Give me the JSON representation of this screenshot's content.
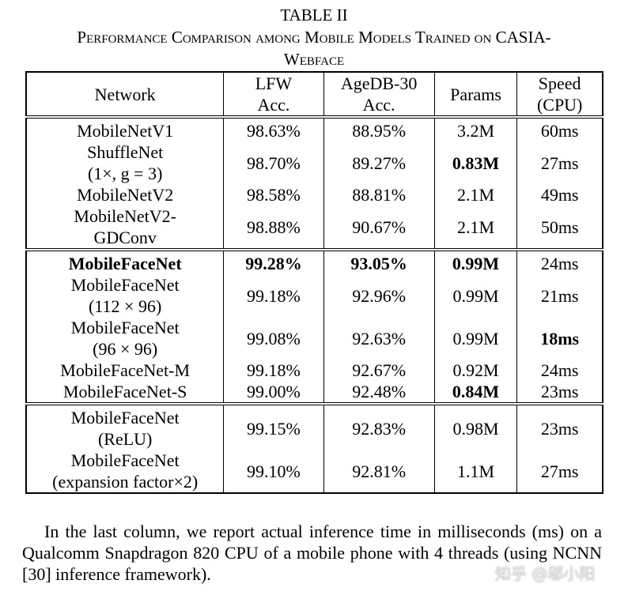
{
  "header": {
    "label": "TABLE II",
    "title": "Performance Comparison among Mobile Models Trained on CASIA-Webface"
  },
  "table": {
    "columns": [
      "Network",
      "LFW\nAcc.",
      "AgeDB-30\nAcc.",
      "Params",
      "Speed\n(CPU)"
    ],
    "groups": [
      [
        [
          "MobileNetV1",
          "98.63%",
          "88.95%",
          "3.2M",
          "60ms"
        ],
        [
          "ShuffleNet\n(1×, g = 3)",
          "98.70%",
          "89.27%",
          "0.83M",
          "27ms"
        ],
        [
          "MobileNetV2",
          "98.58%",
          "88.81%",
          "2.1M",
          "49ms"
        ],
        [
          "MobileNetV2-\nGDConv",
          "98.88%",
          "90.67%",
          "2.1M",
          "50ms"
        ]
      ],
      [
        [
          "MobileFaceNet",
          "99.28%",
          "93.05%",
          "0.99M",
          "24ms"
        ],
        [
          "MobileFaceNet\n(112 × 96)",
          "99.18%",
          "92.96%",
          "0.99M",
          "21ms"
        ],
        [
          "MobileFaceNet\n(96 × 96)",
          "99.08%",
          "92.63%",
          "0.99M",
          "18ms"
        ],
        [
          "MobileFaceNet-M",
          "99.18%",
          "92.67%",
          "0.92M",
          "24ms"
        ],
        [
          "MobileFaceNet-S",
          "99.00%",
          "92.48%",
          "0.84M",
          "23ms"
        ]
      ],
      [
        [
          "MobileFaceNet\n(ReLU)",
          "99.15%",
          "92.83%",
          "0.98M",
          "23ms"
        ],
        [
          "MobileFaceNet\n(expansion factor×2)",
          "99.10%",
          "92.81%",
          "1.1M",
          "27ms"
        ]
      ]
    ],
    "bold": [
      [
        0,
        1,
        3
      ],
      [
        1,
        0,
        0
      ],
      [
        1,
        0,
        1
      ],
      [
        1,
        0,
        2
      ],
      [
        1,
        0,
        3
      ],
      [
        1,
        2,
        4
      ],
      [
        1,
        4,
        3
      ]
    ]
  },
  "note": "In the last column, we report actual inference time in milliseconds (ms) on a Qualcomm Snapdragon 820 CPU of a mobile phone with 4 threads (using NCNN [30] inference framework).",
  "watermark": "知乎 @邬小阳"
}
